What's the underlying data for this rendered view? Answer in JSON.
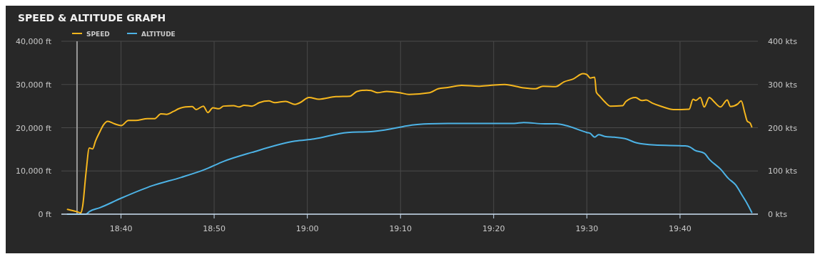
{
  "chart_data": {
    "type": "line",
    "title": "SPEED & ALTITUDE GRAPH",
    "legend": "top left",
    "grid": true,
    "marker": "none",
    "line_style": "solid",
    "xlim": [
      18.56,
      19.806
    ],
    "xticks": [
      {
        "value": 18.6667,
        "label": "18:40"
      },
      {
        "value": 18.8333,
        "label": "18:50"
      },
      {
        "value": 19,
        "label": "19:00"
      },
      {
        "value": 19.1667,
        "label": "19:10"
      },
      {
        "value": 19.3333,
        "label": "19:20"
      },
      {
        "value": 19.5,
        "label": "19:30"
      },
      {
        "value": 19.6667,
        "label": "19:40"
      }
    ],
    "ylim": [
      0,
      40000
    ],
    "yticks": [
      {
        "value": 0,
        "label": "0 ft"
      },
      {
        "value": 10000,
        "label": "10,000 ft"
      },
      {
        "value": 20000,
        "label": "20,000 ft"
      },
      {
        "value": 30000,
        "label": "30,000 ft"
      },
      {
        "value": 40000,
        "label": "40,000 ft"
      }
    ],
    "y2lim": [
      0,
      400
    ],
    "y2ticks": [
      {
        "value": 0,
        "label": "0 kts"
      },
      {
        "value": 100,
        "label": "100 kts"
      },
      {
        "value": 200,
        "label": "200 kts"
      },
      {
        "value": 300,
        "label": "300 kts"
      },
      {
        "value": 400,
        "label": "400 kts"
      }
    ],
    "ref_lines": [
      {
        "axis": "x",
        "value": 18.588,
        "color": "#9a9a9a"
      }
    ],
    "series": [
      {
        "name": "SPEED",
        "color": "#f6b71e",
        "axis": "y2",
        "x": [
          18.571,
          18.587,
          18.595,
          18.598,
          18.604,
          18.61,
          18.616,
          18.621,
          18.629,
          18.635,
          18.643,
          18.655,
          18.667,
          18.68,
          18.693,
          18.714,
          18.727,
          18.738,
          18.748,
          18.761,
          18.77,
          18.782,
          18.794,
          18.801,
          18.814,
          18.822,
          18.831,
          18.842,
          18.85,
          18.868,
          18.878,
          18.887,
          18.901,
          18.914,
          18.931,
          18.942,
          18.961,
          18.978,
          18.987,
          19.003,
          19.021,
          19.051,
          19.076,
          19.089,
          19.106,
          19.114,
          19.125,
          19.142,
          19.165,
          19.182,
          19.219,
          19.234,
          19.251,
          19.276,
          19.306,
          19.327,
          19.353,
          19.387,
          19.408,
          19.421,
          19.444,
          19.459,
          19.476,
          19.493,
          19.5,
          19.506,
          19.514,
          19.517,
          19.523,
          19.532,
          19.542,
          19.564,
          19.57,
          19.587,
          19.598,
          19.606,
          19.617,
          19.634,
          19.655,
          19.683,
          19.69,
          19.695,
          19.703,
          19.71,
          19.719,
          19.727,
          19.739,
          19.751,
          19.757,
          19.77,
          19.776,
          19.783,
          19.787,
          19.792,
          19.795
        ],
        "values": [
          11,
          6,
          3,
          18,
          95,
          153,
          151,
          169,
          191,
          206,
          215,
          209,
          205,
          217,
          217,
          221,
          221,
          232,
          231,
          238,
          244,
          248,
          249,
          242,
          250,
          235,
          246,
          244,
          250,
          251,
          248,
          252,
          250,
          258,
          262,
          258,
          261,
          254,
          258,
          270,
          266,
          272,
          273,
          284,
          287,
          286,
          281,
          284,
          281,
          277,
          281,
          290,
          293,
          298,
          296,
          298,
          300,
          292,
          290,
          296,
          295,
          306,
          313,
          325,
          323,
          315,
          317,
          282,
          273,
          260,
          250,
          251,
          261,
          270,
          263,
          264,
          257,
          249,
          242,
          243,
          266,
          263,
          270,
          248,
          270,
          261,
          248,
          264,
          249,
          255,
          262,
          232,
          215,
          211,
          202
        ]
      },
      {
        "name": "ALTITUDE",
        "color": "#4db3e6",
        "x": [
          18.571,
          18.604,
          18.61,
          18.629,
          18.667,
          18.723,
          18.774,
          18.816,
          18.85,
          18.901,
          18.978,
          19.012,
          19.072,
          19.114,
          19.157,
          19.187,
          19.217,
          19.251,
          19.37,
          19.387,
          19.425,
          19.446,
          19.463,
          19.5,
          19.506,
          19.514,
          19.521,
          19.532,
          19.549,
          19.568,
          19.589,
          19.621,
          19.676,
          19.685,
          19.693,
          19.71,
          19.719,
          19.74,
          19.753,
          19.766,
          19.779,
          19.787,
          19.795
        ],
        "values": [
          0,
          0,
          600,
          1500,
          3700,
          6600,
          8500,
          10300,
          12200,
          14300,
          16900,
          17400,
          18900,
          19100,
          19900,
          20600,
          20900,
          21000,
          21000,
          21200,
          20900,
          20900,
          20500,
          18900,
          18700,
          17800,
          18400,
          18000,
          17800,
          17500,
          16500,
          16000,
          15800,
          15500,
          14800,
          14100,
          12700,
          10300,
          8300,
          6800,
          4100,
          2400,
          400
        ]
      }
    ]
  }
}
